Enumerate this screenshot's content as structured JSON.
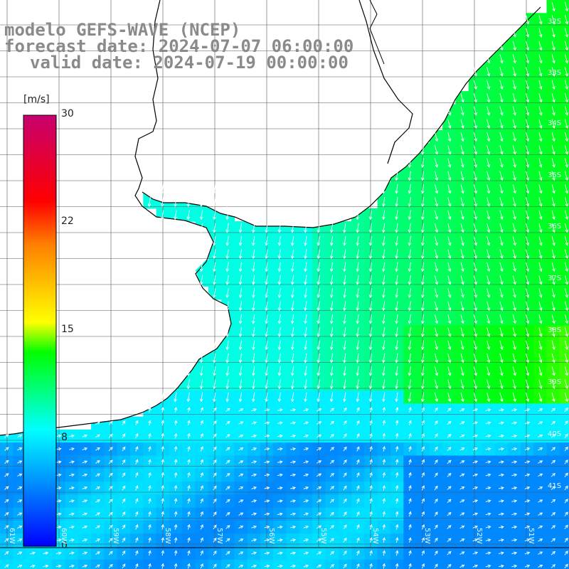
{
  "header": {
    "line1": "modelo GEFS-WAVE (NCEP)",
    "line2": "forecast date: 2024-07-07 06:00:00",
    "line3": "valid date: 2024-07-19 00:00:00"
  },
  "colorbar": {
    "unit": "[m/s]",
    "ticks": [
      "30",
      "22",
      "15",
      "8",
      "0"
    ],
    "stops": [
      "#0000ff",
      "#00aaff",
      "#00ffff",
      "#00ff00",
      "#ffff00",
      "#ff8000",
      "#ff0000",
      "#c8006e"
    ]
  },
  "lat_labels": [
    "32S",
    "33S",
    "34S",
    "35S",
    "36S",
    "37S",
    "38S",
    "39S",
    "40S",
    "41S"
  ],
  "lon_labels": [
    "61W",
    "60W",
    "59W",
    "58W",
    "57W",
    "56W",
    "55W",
    "54W",
    "53W",
    "52W",
    "51W"
  ],
  "colors": {
    "land": "#ffffff",
    "coast": "#000000",
    "grid": "#555555"
  }
}
